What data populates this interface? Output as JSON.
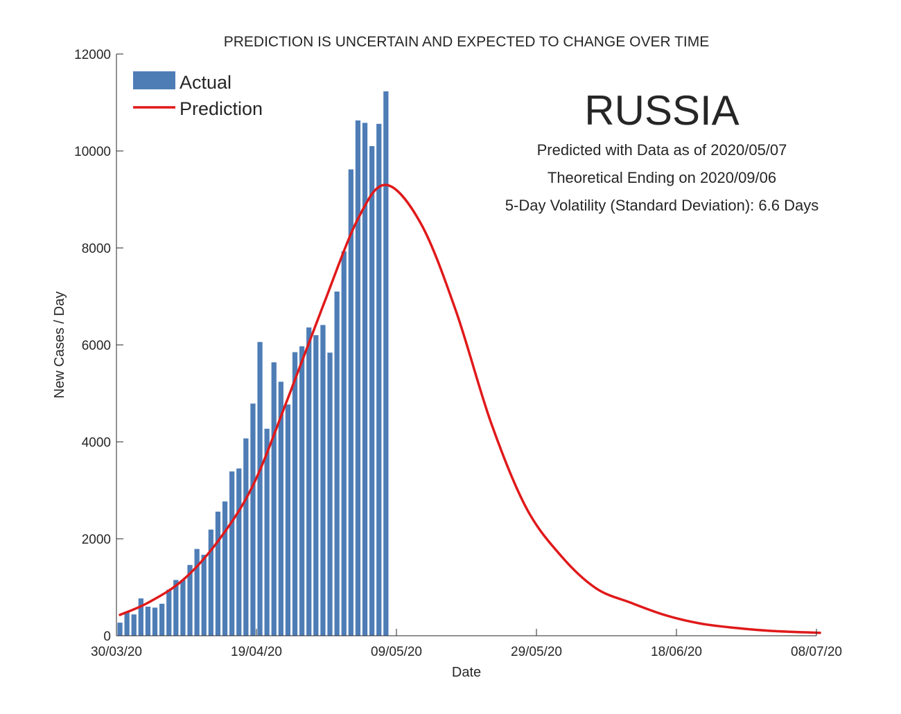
{
  "chart_data": {
    "type": "bar",
    "title": "PREDICTION IS UNCERTAIN AND EXPECTED TO CHANGE OVER TIME",
    "xlabel": "Date",
    "ylabel": "New Cases / Day",
    "xlim": [
      "2020-03-30",
      "2020-07-08"
    ],
    "ylim": [
      0,
      12000
    ],
    "xticks": [
      "30/03/20",
      "19/04/20",
      "09/05/20",
      "29/05/20",
      "18/06/20",
      "08/07/20"
    ],
    "yticks": [
      "0",
      "2000",
      "4000",
      "6000",
      "8000",
      "10000",
      "12000"
    ],
    "grid": false,
    "legend_position": "top-left",
    "colors": {
      "actual": "#4E7DB6",
      "prediction": "#E0191A"
    },
    "annotations": {
      "country": "RUSSIA",
      "line1": "Predicted with Data as of 2020/05/07",
      "line2": "Theoretical Ending on 2020/09/06",
      "line3": "5-Day Volatility (Standard Deviation): 6.6 Days"
    },
    "series": [
      {
        "name": "Actual",
        "type": "bar",
        "x": [
          "2020-03-30",
          "2020-03-31",
          "2020-04-01",
          "2020-04-02",
          "2020-04-03",
          "2020-04-04",
          "2020-04-05",
          "2020-04-06",
          "2020-04-07",
          "2020-04-08",
          "2020-04-09",
          "2020-04-10",
          "2020-04-11",
          "2020-04-12",
          "2020-04-13",
          "2020-04-14",
          "2020-04-15",
          "2020-04-16",
          "2020-04-17",
          "2020-04-18",
          "2020-04-19",
          "2020-04-20",
          "2020-04-21",
          "2020-04-22",
          "2020-04-23",
          "2020-04-24",
          "2020-04-25",
          "2020-04-26",
          "2020-04-27",
          "2020-04-28",
          "2020-04-29",
          "2020-04-30",
          "2020-05-01",
          "2020-05-02",
          "2020-05-03",
          "2020-05-04",
          "2020-05-05",
          "2020-05-06",
          "2020-05-07"
        ],
        "values": [
          270,
          500,
          440,
          770,
          600,
          580,
          660,
          950,
          1150,
          1150,
          1460,
          1790,
          1670,
          2190,
          2560,
          2770,
          3390,
          3450,
          4070,
          4790,
          6060,
          4270,
          5640,
          5240,
          4770,
          5850,
          5970,
          6360,
          6200,
          6410,
          5840,
          7100,
          7930,
          9620,
          10630,
          10580,
          10100,
          10560,
          11230
        ]
      },
      {
        "name": "Prediction",
        "type": "line",
        "x": [
          "2020-03-30",
          "2020-04-03",
          "2020-04-08",
          "2020-04-13",
          "2020-04-18",
          "2020-04-23",
          "2020-04-28",
          "2020-05-03",
          "2020-05-07",
          "2020-05-12",
          "2020-05-17",
          "2020-05-22",
          "2020-05-27",
          "2020-06-01",
          "2020-06-06",
          "2020-06-11",
          "2020-06-16",
          "2020-06-21",
          "2020-06-26",
          "2020-07-01",
          "2020-07-08"
        ],
        "values": [
          430,
          680,
          1150,
          1950,
          3100,
          4900,
          6800,
          8600,
          9300,
          8500,
          6700,
          4400,
          2650,
          1650,
          980,
          680,
          420,
          250,
          160,
          100,
          60
        ]
      }
    ]
  }
}
